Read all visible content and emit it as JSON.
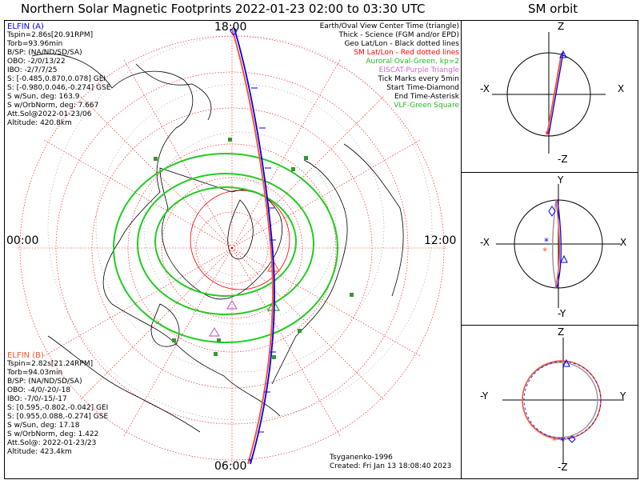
{
  "header": {
    "title": "Northern Solar Magnetic Footprints 2022-01-23 02:00 to 03:30 UTC",
    "orbit_title": "SM orbit"
  },
  "map": {
    "top_label": "18:00",
    "bottom_label": "06:00",
    "left_label": "00:00",
    "right_label": "12:00"
  },
  "elfin_a": {
    "name": "ELFIN (A)",
    "lines": [
      "Tspin=2.86s[20.91RPM]",
      "Torb=93.96min",
      "B/SP: (NA/ND/SD/SA)",
      "OBO: -2/0/13/22",
      "IBO: -2/7/7/25",
      "S: [-0.485,0.870,0.078] GEI",
      "S: [-0.980,0.046,-0.274] GSE",
      "S w/Sun, deg: 163.9",
      "S w/OrbNorm, deg: 7.667",
      "Att.Sol@2022-01-23/06",
      "Altitude: 420.8km"
    ]
  },
  "elfin_b": {
    "name": "ELFIN (B)",
    "lines": [
      "Tspin=2.82s[21.24RPM]",
      "Torb=94.03min",
      "B/SP: (NA/ND/SD/SA)",
      "OBO: -4/0/-20/-18",
      "IBO: -7/0/-15/-17",
      "S: [0.595,-0.802,-0.042] GEI",
      "S: [0.955,0.088,-0.274] GSE",
      "S w/Sun, deg: 17.18",
      "S w/OrbNorm, deg: 1.422",
      "Att.Sol@: 2022-01-23/23",
      "Altitude: 423.4km"
    ]
  },
  "legend": [
    {
      "text": "Earth/Oval View Center Time (triangle)",
      "color": "#000000"
    },
    {
      "text": "Thick - Science (FGM and/or EPD)",
      "color": "#000000"
    },
    {
      "text": "Geo Lat/Lon - Black dotted lines",
      "color": "#000000"
    },
    {
      "text": "SM Lat/Lon - Red dotted lines",
      "color": "#ff0000"
    },
    {
      "text": "Auroral Oval-Green, kp=2",
      "color": "#22bb22"
    },
    {
      "text": "EISCAT-Purple Triangle",
      "color": "#cc66cc"
    },
    {
      "text": "Tick Marks every 5min",
      "color": "#000000"
    },
    {
      "text": "Start Time-Diamond",
      "color": "#000000"
    },
    {
      "text": "End Time-Asterisk",
      "color": "#000000"
    },
    {
      "text": "VLF-Green Square",
      "color": "#22bb22"
    }
  ],
  "footer": {
    "author": "Tsyganenko-1996",
    "created": "Created: Fri Jan 13 18:08:40 2023"
  },
  "orbit_panels": [
    {
      "top": "Z",
      "bottom": "-Z",
      "left": "-X",
      "right": "X"
    },
    {
      "top": "Y",
      "bottom": "-Y",
      "left": "-X",
      "right": "X"
    },
    {
      "top": "Z",
      "bottom": "-Z",
      "left": "-Y",
      "right": "Y"
    }
  ],
  "colors": {
    "elfin_a": "#0000ff",
    "elfin_b": "#ff5533",
    "aurora": "#22cc22",
    "sm_grid": "#ff0000",
    "geo_grid": "#000000"
  }
}
